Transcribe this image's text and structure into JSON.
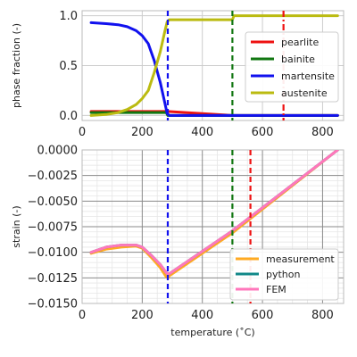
{
  "chart_data": [
    {
      "type": "line",
      "xlabel": "",
      "ylabel": "phase fraction (-)",
      "xlim": [
        0,
        870
      ],
      "ylim": [
        -0.05,
        1.05
      ],
      "xticks": [
        0,
        200,
        400,
        600,
        800
      ],
      "xtick_labels": [
        "0",
        "200",
        "400",
        "600",
        "800"
      ],
      "yticks": [
        0.0,
        0.5,
        1.0
      ],
      "ytick_labels": [
        "0.0",
        "0.5",
        "1.0"
      ],
      "grid": true,
      "minor_grid": false,
      "legend_position": "right",
      "series": [
        {
          "name": "pearlite",
          "color": "#ee1111",
          "x": [
            30,
            285,
            500,
            850
          ],
          "y": [
            0.04,
            0.04,
            0.0,
            0.0
          ]
        },
        {
          "name": "bainite",
          "color": "#117711",
          "x": [
            30,
            280,
            285,
            850
          ],
          "y": [
            0.03,
            0.03,
            0.0,
            0.0
          ]
        },
        {
          "name": "martensite",
          "color": "#1111ee",
          "x": [
            30,
            80,
            120,
            150,
            180,
            200,
            220,
            240,
            260,
            275,
            283,
            290,
            850
          ],
          "y": [
            0.93,
            0.92,
            0.91,
            0.89,
            0.85,
            0.8,
            0.72,
            0.55,
            0.33,
            0.13,
            0.02,
            0.0,
            0.0
          ]
        },
        {
          "name": "austenite",
          "color": "#bbbb11",
          "x": [
            30,
            80,
            120,
            150,
            180,
            200,
            220,
            240,
            260,
            275,
            283,
            290,
            500,
            505,
            850
          ],
          "y": [
            0.0,
            0.01,
            0.03,
            0.06,
            0.11,
            0.17,
            0.25,
            0.43,
            0.64,
            0.84,
            0.94,
            0.96,
            0.96,
            1.0,
            1.0
          ]
        }
      ],
      "vlines": [
        {
          "x": 285,
          "color": "#1111ee",
          "style": "dashed"
        },
        {
          "x": 500,
          "color": "#117711",
          "style": "dashed"
        },
        {
          "x": 670,
          "color": "#ee1111",
          "style": "dash-dot"
        }
      ]
    },
    {
      "type": "line",
      "xlabel": "temperature ($^\\circ$C)",
      "ylabel": "strain (-)",
      "xlim": [
        0,
        870
      ],
      "ylim": [
        -0.015,
        0.0
      ],
      "xticks": [
        0,
        200,
        400,
        600,
        800
      ],
      "xtick_labels": [
        "0",
        "200",
        "400",
        "600",
        "800"
      ],
      "yticks": [
        -0.015,
        -0.0125,
        -0.01,
        -0.0075,
        -0.005,
        -0.0025,
        0.0
      ],
      "ytick_labels": [
        "−0.0150",
        "−0.0125",
        "−0.0100",
        "−0.0075",
        "−0.0050",
        "−0.0025",
        "0.0000"
      ],
      "grid": true,
      "minor_grid": true,
      "legend_position": "lower-right",
      "series": [
        {
          "name": "measurement",
          "color": "#ffaa22",
          "x": [
            30,
            80,
            130,
            180,
            200,
            230,
            260,
            280,
            285,
            290,
            500,
            850
          ],
          "y": [
            -0.0101,
            -0.0097,
            -0.0095,
            -0.0094,
            -0.0096,
            -0.0105,
            -0.0115,
            -0.0124,
            -0.0125,
            -0.0123,
            -0.0081,
            0.0
          ]
        },
        {
          "name": "python",
          "color": "#118888",
          "x": [
            30,
            80,
            130,
            180,
            200,
            230,
            260,
            280,
            285,
            290,
            500,
            850
          ],
          "y": [
            -0.01,
            -0.0095,
            -0.0093,
            -0.0093,
            -0.0095,
            -0.0103,
            -0.0112,
            -0.012,
            -0.0121,
            -0.0121,
            -0.0079,
            0.0
          ]
        },
        {
          "name": "FEM",
          "color": "#ff77bb",
          "x": [
            30,
            80,
            130,
            180,
            200,
            230,
            260,
            280,
            285,
            290,
            500,
            850
          ],
          "y": [
            -0.01,
            -0.0095,
            -0.0093,
            -0.0093,
            -0.0095,
            -0.0103,
            -0.0112,
            -0.012,
            -0.0121,
            -0.0121,
            -0.0079,
            0.0
          ]
        }
      ],
      "vlines": [
        {
          "x": 285,
          "color": "#1111ee",
          "style": "dashed"
        },
        {
          "x": 500,
          "color": "#117711",
          "style": "dashed"
        },
        {
          "x": 560,
          "color": "#ee1111",
          "style": "dashed"
        }
      ]
    }
  ]
}
